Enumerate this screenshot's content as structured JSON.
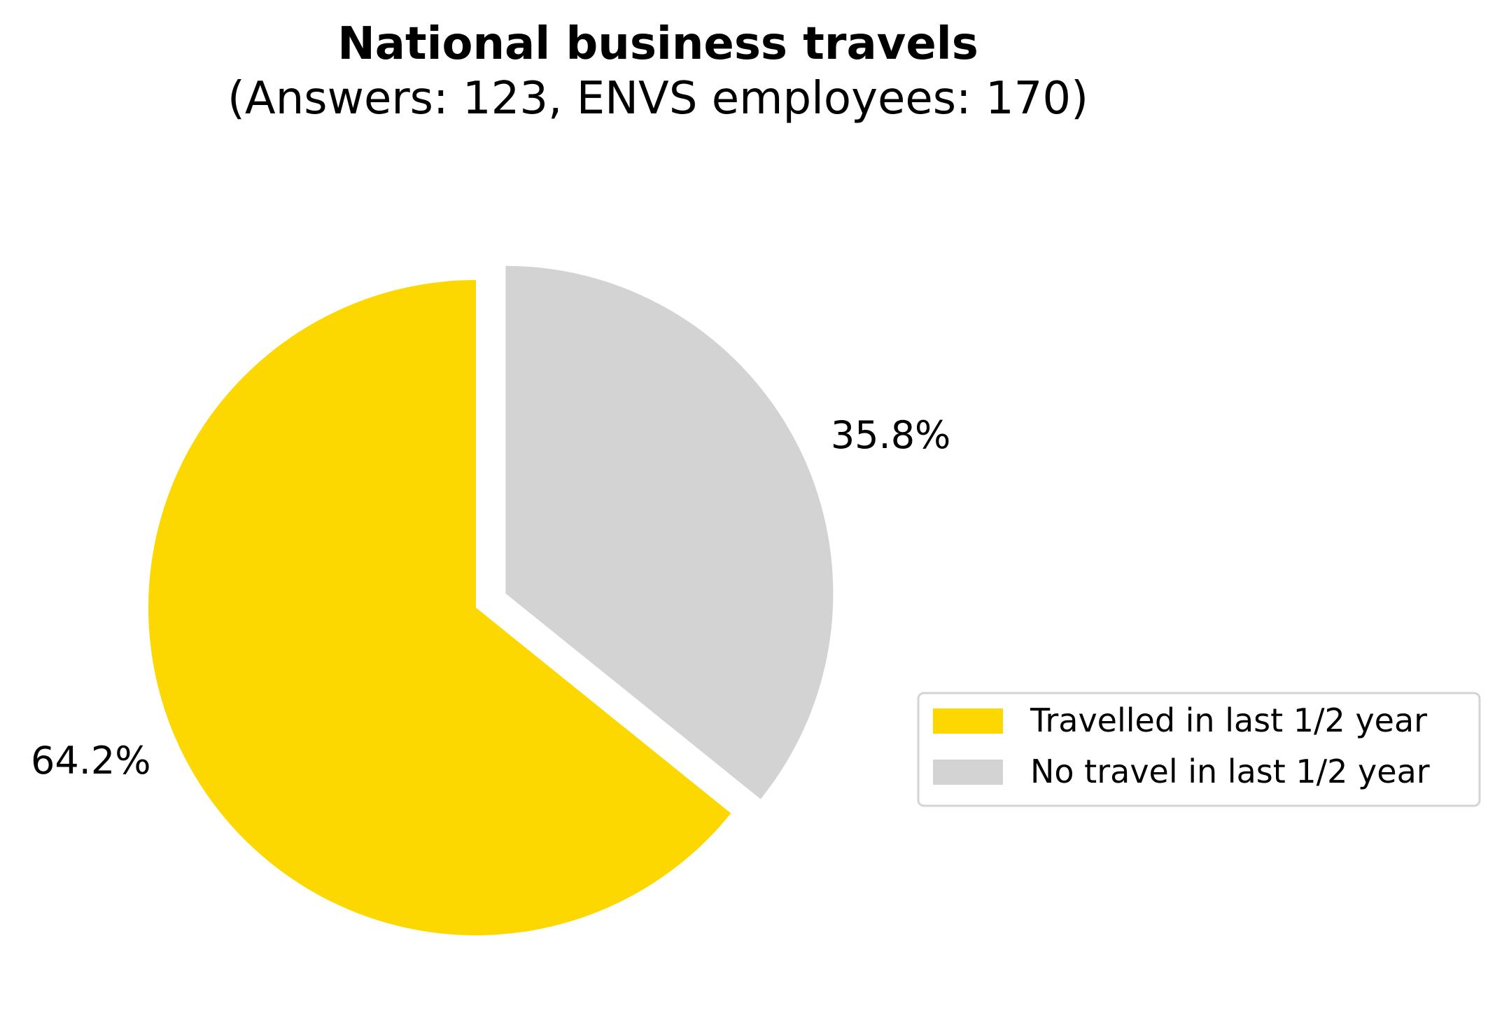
{
  "chart_data": {
    "type": "pie",
    "title": "National business travels",
    "subtitle": "(Answers: 123, ENVS employees: 170)",
    "slices": [
      {
        "label": "Travelled in last 1/2 year",
        "value": 64.2,
        "value_label": "64.2%",
        "color": "#FDD700",
        "exploded": false
      },
      {
        "label": "No travel in last 1/2 year",
        "value": 35.8,
        "value_label": "35.8%",
        "color": "#D3D3D3",
        "exploded": true
      }
    ],
    "start_angle": "top (12 o'clock)",
    "direction": "counterclockwise",
    "legend": {
      "placement": "right",
      "entries": [
        "Travelled in last 1/2 year",
        "No travel in last 1/2 year"
      ]
    }
  }
}
